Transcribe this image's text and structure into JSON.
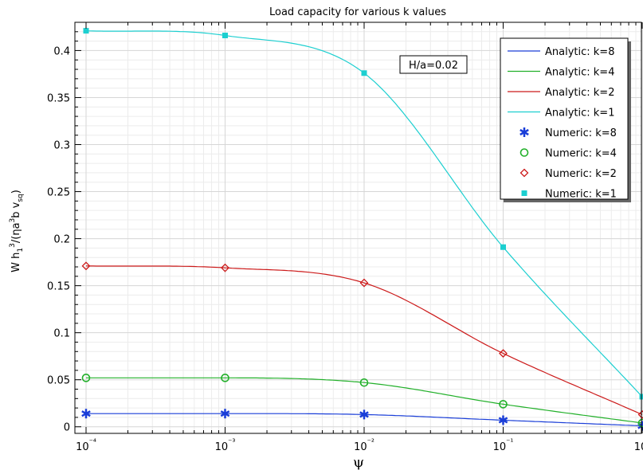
{
  "chart_data": {
    "type": "line",
    "title": "Load capacity for various k values",
    "xlabel": "ψ",
    "ylabel": "W h₁³/(ηa³b v_sq)",
    "xscale": "log",
    "xlim": [
      0.0001,
      1
    ],
    "ylim": [
      -0.007,
      0.43
    ],
    "grid": true,
    "legend_position": "top-right",
    "x_tick_labels": [
      "10⁻⁴",
      "10⁻³",
      "10⁻²",
      "10⁻¹",
      "10⁰"
    ],
    "y_ticks": [
      0,
      0.05,
      0.1,
      0.15,
      0.2,
      0.25,
      0.3,
      0.35,
      0.4
    ],
    "y_tick_labels": [
      "0",
      "0.05",
      "0.1",
      "0.15",
      "0.2",
      "0.25",
      "0.3",
      "0.35",
      "0.4"
    ],
    "annotation": "H/a=0.02",
    "x": [
      0.0001,
      0.001,
      0.01,
      0.1,
      1
    ],
    "series": [
      {
        "name": "Analytic: k=8",
        "kind": "line",
        "color": "#1a3ed8",
        "values": [
          0.014,
          0.014,
          0.013,
          0.007,
          0.001
        ]
      },
      {
        "name": "Analytic: k=4",
        "kind": "line",
        "color": "#22b02a",
        "values": [
          0.052,
          0.052,
          0.047,
          0.024,
          0.004
        ]
      },
      {
        "name": "Analytic: k=2",
        "kind": "line",
        "color": "#cc1a1a",
        "values": [
          0.171,
          0.169,
          0.153,
          0.078,
          0.013
        ]
      },
      {
        "name": "Analytic: k=1",
        "kind": "line",
        "color": "#1ccfd0",
        "values": [
          0.421,
          0.416,
          0.376,
          0.191,
          0.032
        ]
      },
      {
        "name": "Numeric: k=8",
        "kind": "marker",
        "marker": "asterisk",
        "color": "#1a3ed8",
        "values": [
          0.014,
          0.014,
          0.013,
          0.007,
          0.001
        ]
      },
      {
        "name": "Numeric: k=4",
        "kind": "marker",
        "marker": "circle",
        "color": "#22b02a",
        "values": [
          0.052,
          0.052,
          0.047,
          0.024,
          0.004
        ]
      },
      {
        "name": "Numeric: k=2",
        "kind": "marker",
        "marker": "diamond",
        "color": "#cc1a1a",
        "values": [
          0.171,
          0.169,
          0.153,
          0.078,
          0.013
        ]
      },
      {
        "name": "Numeric: k=1",
        "kind": "marker",
        "marker": "square",
        "color": "#1ccfd0",
        "values": [
          0.421,
          0.416,
          0.376,
          0.191,
          0.032
        ]
      }
    ]
  }
}
